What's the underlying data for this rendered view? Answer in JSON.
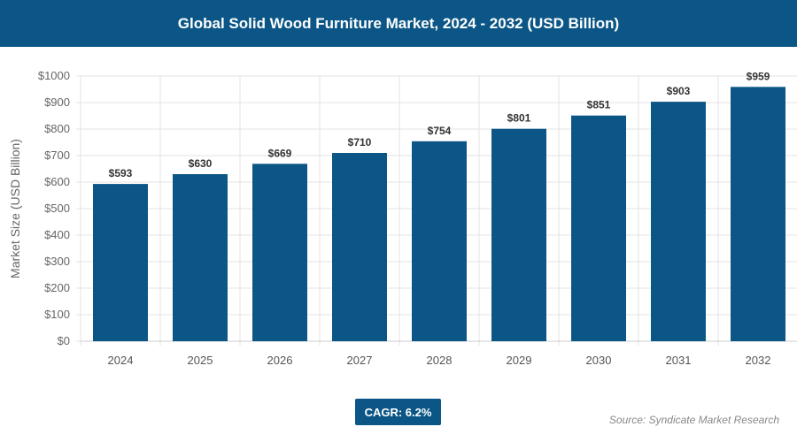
{
  "header": {
    "title": "Global Solid Wood Furniture Market, 2024 - 2032 (USD Billion)"
  },
  "footer": {
    "cagr": "CAGR: 6.2%",
    "source": "Source: Syndicate Market Research"
  },
  "colors": {
    "bar": "#0b5686",
    "header": "#0b5686"
  },
  "chart_data": {
    "type": "bar",
    "title": "Global Solid Wood Furniture Market, 2024 - 2032 (USD Billion)",
    "xlabel": "",
    "ylabel": "Market Size (USD Billion)",
    "categories": [
      "2024",
      "2025",
      "2026",
      "2027",
      "2028",
      "2029",
      "2030",
      "2031",
      "2032"
    ],
    "values": [
      593,
      630,
      669,
      710,
      754,
      801,
      851,
      903,
      959
    ],
    "data_labels": [
      "$593",
      "$630",
      "$669",
      "$710",
      "$754",
      "$801",
      "$851",
      "$903",
      "$959"
    ],
    "ylim": [
      0,
      1000
    ],
    "yticks": [
      0,
      100,
      200,
      300,
      400,
      500,
      600,
      700,
      800,
      900,
      1000
    ],
    "ytick_labels": [
      "$0",
      "$100",
      "$200",
      "$300",
      "$400",
      "$500",
      "$600",
      "$700",
      "$800",
      "$900",
      "$1000"
    ],
    "grid": true,
    "legend": "none"
  }
}
